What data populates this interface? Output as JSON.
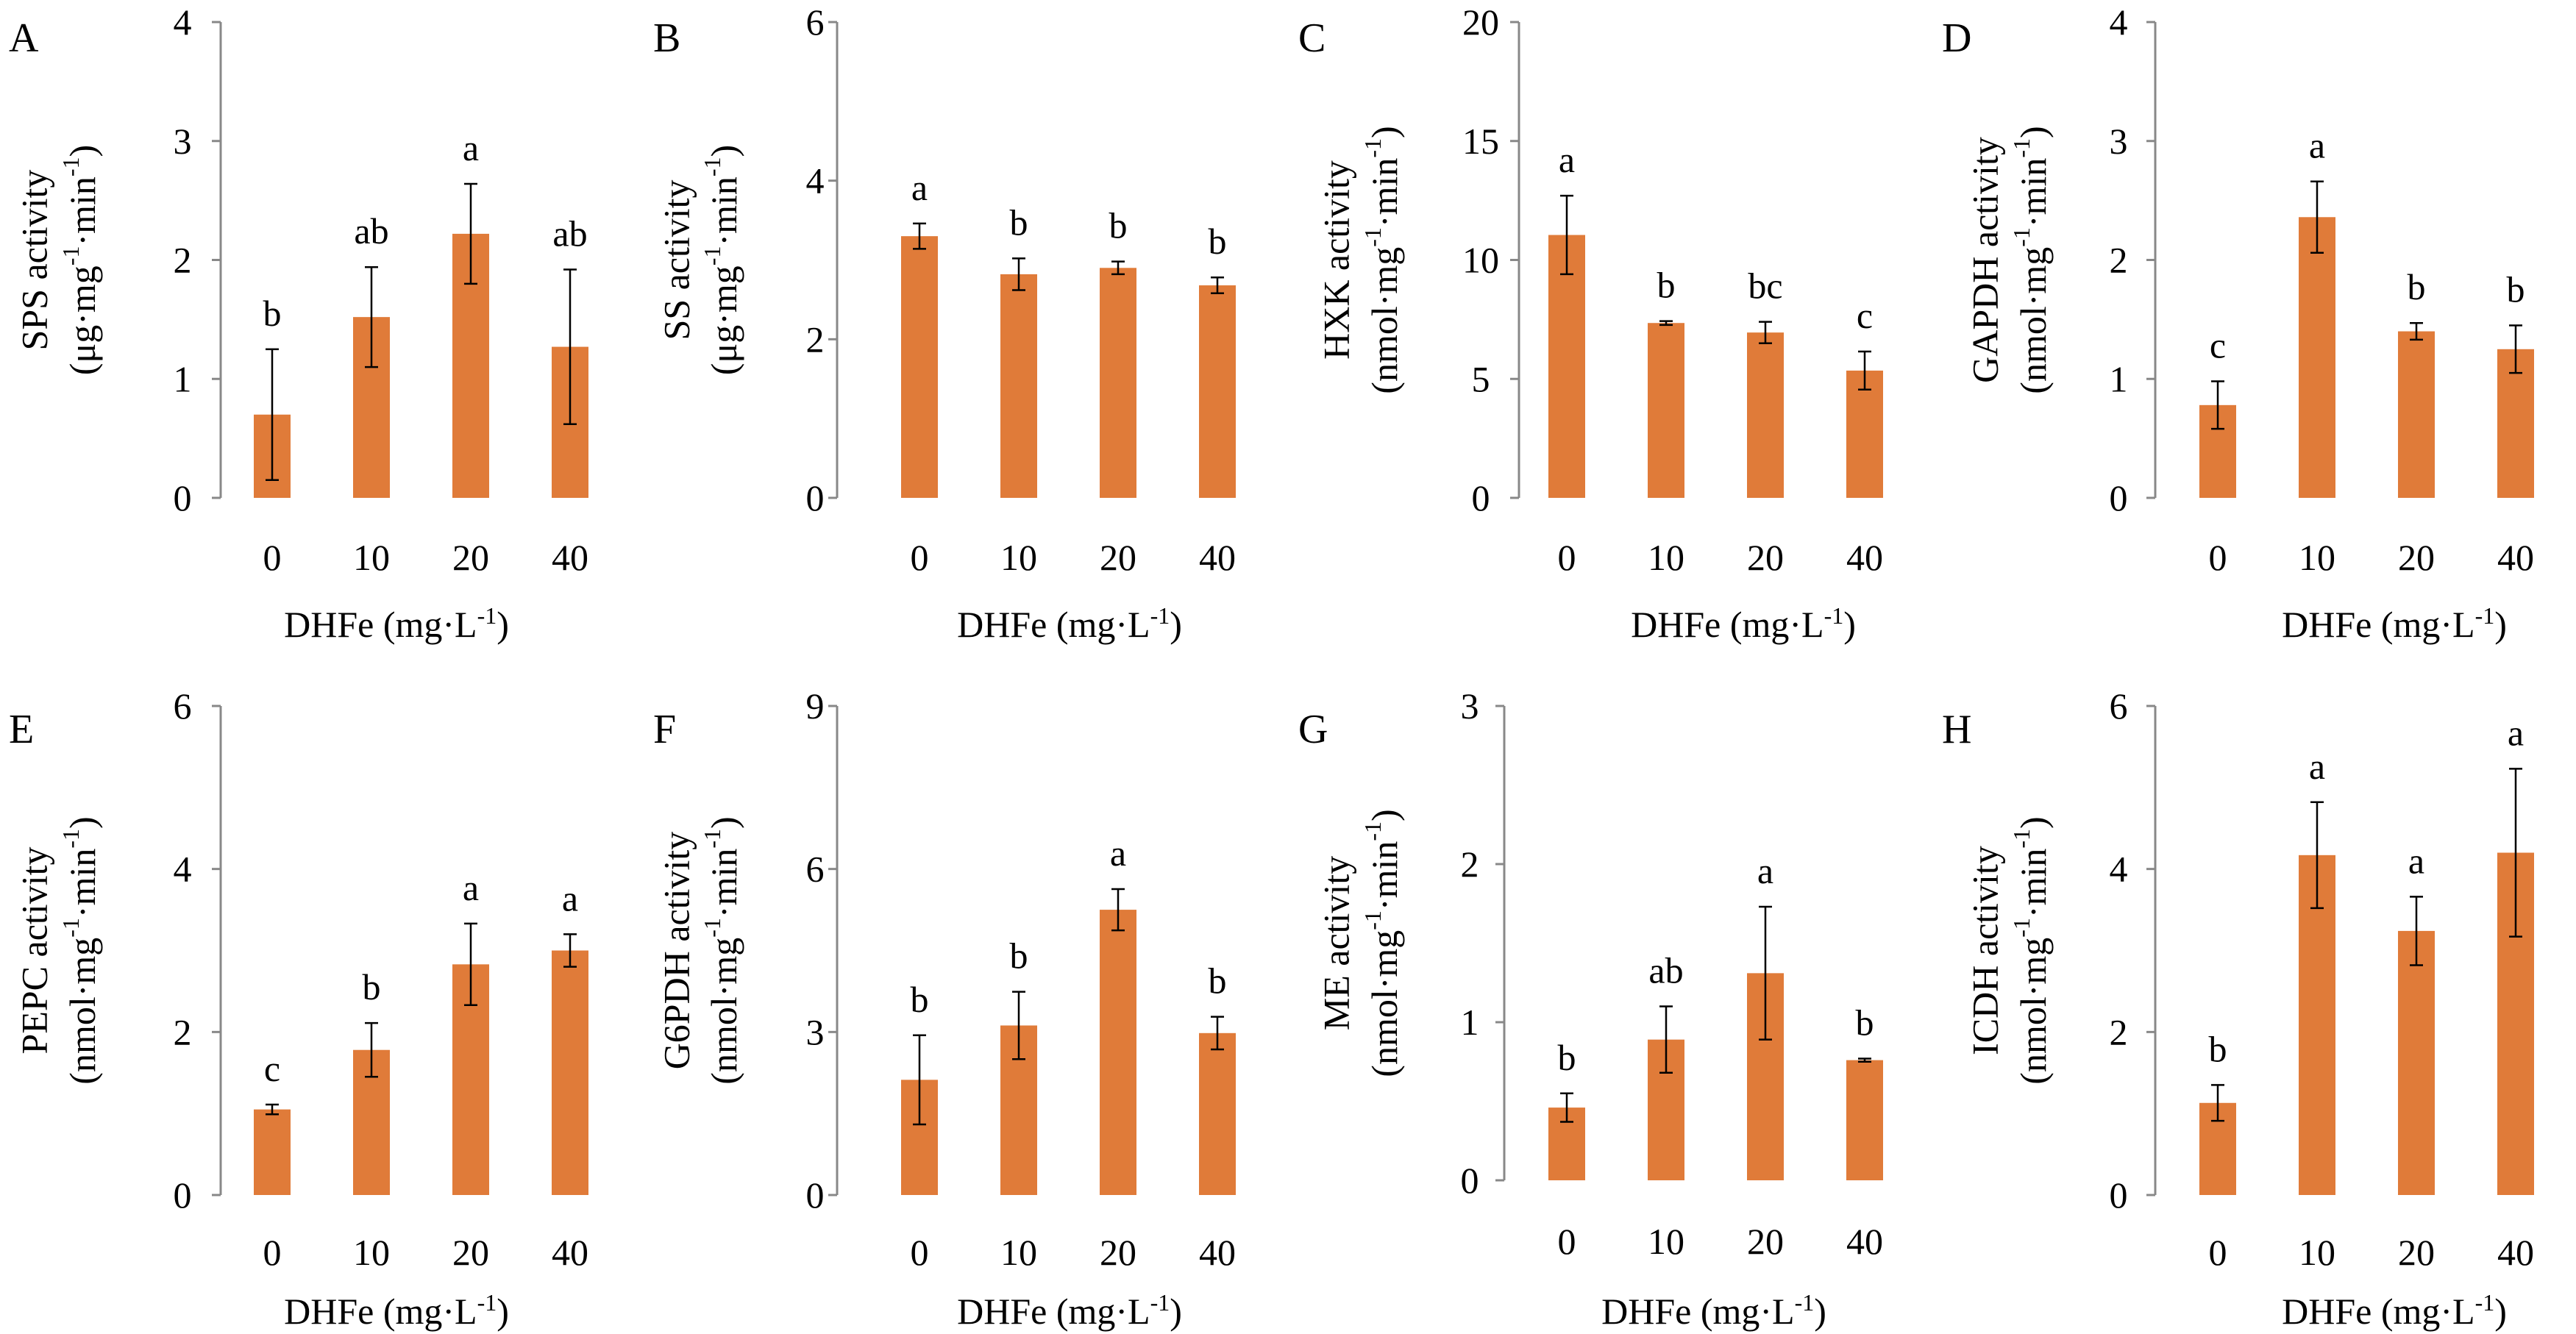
{
  "figure": {
    "bar_color": "#E07B39",
    "error_bar_color": "#000000",
    "axis_color": "#888888"
  },
  "chart_data": [
    {
      "panel": "A",
      "type": "bar",
      "categories": [
        "0",
        "10",
        "20",
        "40"
      ],
      "values": [
        0.7,
        1.52,
        2.22,
        1.27
      ],
      "errors": [
        0.55,
        0.42,
        0.42,
        0.65
      ],
      "labels": [
        "b",
        "ab",
        "a",
        "ab"
      ],
      "ylim": [
        0,
        4
      ],
      "yticks": [
        "0",
        "1",
        "2",
        "3",
        "4"
      ],
      "ylabel_line1": "SPS activity",
      "ylabel_line2_main": "(μg·mg",
      "ylabel_line2_sup": "-1",
      "ylabel_line2_mid": "·min",
      "ylabel_line2_sup2": "-1",
      "ylabel_line2_end": ")",
      "xlabel_main": "DHFe (mg·L",
      "xlabel_sup": "-1",
      "xlabel_end": ")"
    },
    {
      "panel": "B",
      "type": "bar",
      "categories": [
        "0",
        "10",
        "20",
        "40"
      ],
      "values": [
        3.3,
        2.82,
        2.9,
        2.68
      ],
      "errors": [
        0.16,
        0.2,
        0.08,
        0.1
      ],
      "labels": [
        "a",
        "b",
        "b",
        "b"
      ],
      "ylim": [
        0,
        6
      ],
      "yticks": [
        "0",
        "2",
        "4",
        "6"
      ],
      "ylabel_line1": "SS activity",
      "ylabel_line2_main": "(μg·mg",
      "ylabel_line2_sup": "-1",
      "ylabel_line2_mid": "·min",
      "ylabel_line2_sup2": "-1",
      "ylabel_line2_end": ")",
      "xlabel_main": "DHFe (mg·L",
      "xlabel_sup": "-1",
      "xlabel_end": ")"
    },
    {
      "panel": "C",
      "type": "bar",
      "categories": [
        "0",
        "10",
        "20",
        "40"
      ],
      "values": [
        11.05,
        7.35,
        6.95,
        5.35
      ],
      "errors": [
        1.65,
        0.08,
        0.45,
        0.8
      ],
      "labels": [
        "a",
        "b",
        "bc",
        "c"
      ],
      "ylim": [
        0,
        20
      ],
      "yticks": [
        "0",
        "5",
        "10",
        "15",
        "20"
      ],
      "ylabel_line1": "HXK activity",
      "ylabel_line2_main": "(nmol·mg",
      "ylabel_line2_sup": "-1",
      "ylabel_line2_mid": "·min",
      "ylabel_line2_sup2": "-1",
      "ylabel_line2_end": ")",
      "xlabel_main": "DHFe (mg·L",
      "xlabel_sup": "-1",
      "xlabel_end": ")"
    },
    {
      "panel": "D",
      "type": "bar",
      "categories": [
        "0",
        "10",
        "20",
        "40"
      ],
      "values": [
        0.78,
        2.36,
        1.4,
        1.25
      ],
      "errors": [
        0.2,
        0.3,
        0.07,
        0.2
      ],
      "labels": [
        "c",
        "a",
        "b",
        "b"
      ],
      "ylim": [
        0,
        4
      ],
      "yticks": [
        "0",
        "1",
        "2",
        "3",
        "4"
      ],
      "ylabel_line1": "GAPDH activity",
      "ylabel_line2_main": "(nmol·mg",
      "ylabel_line2_sup": "-1",
      "ylabel_line2_mid": "·min",
      "ylabel_line2_sup2": "-1",
      "ylabel_line2_end": ")",
      "xlabel_main": "DHFe (mg·L",
      "xlabel_sup": "-1",
      "xlabel_end": ")"
    },
    {
      "panel": "E",
      "type": "bar",
      "categories": [
        "0",
        "10",
        "20",
        "40"
      ],
      "values": [
        1.05,
        1.78,
        2.83,
        3.0
      ],
      "errors": [
        0.06,
        0.33,
        0.5,
        0.2
      ],
      "labels": [
        "c",
        "b",
        "a",
        "a"
      ],
      "ylim": [
        0,
        6
      ],
      "yticks": [
        "0",
        "2",
        "4",
        "6"
      ],
      "ylabel_line1": "PEPC activity",
      "ylabel_line2_main": "(nmol·mg",
      "ylabel_line2_sup": "-1",
      "ylabel_line2_mid": "·min",
      "ylabel_line2_sup2": "-1",
      "ylabel_line2_end": ")",
      "xlabel_main": "DHFe (mg·L",
      "xlabel_sup": "-1",
      "xlabel_end": ")"
    },
    {
      "panel": "F",
      "type": "bar",
      "categories": [
        "0",
        "10",
        "20",
        "40"
      ],
      "values": [
        2.12,
        3.12,
        5.25,
        2.98
      ],
      "errors": [
        0.82,
        0.62,
        0.38,
        0.3
      ],
      "labels": [
        "b",
        "b",
        "a",
        "b"
      ],
      "ylim": [
        0,
        9
      ],
      "yticks": [
        "0",
        "3",
        "6",
        "9"
      ],
      "ylabel_line1": "G6PDH activity",
      "ylabel_line2_main": "(nmol·mg",
      "ylabel_line2_sup": "-1",
      "ylabel_line2_mid": "·min",
      "ylabel_line2_sup2": "-1",
      "ylabel_line2_end": ")",
      "xlabel_main": "DHFe (mg·L",
      "xlabel_sup": "-1",
      "xlabel_end": ")"
    },
    {
      "panel": "G",
      "type": "bar",
      "categories": [
        "0",
        "10",
        "20",
        "40"
      ],
      "values": [
        0.46,
        0.89,
        1.31,
        0.76
      ],
      "errors": [
        0.09,
        0.21,
        0.42,
        0.01
      ],
      "labels": [
        "b",
        "ab",
        "a",
        "b"
      ],
      "ylim": [
        0,
        3
      ],
      "yticks": [
        "0",
        "1",
        "2",
        "3"
      ],
      "ylabel_line1": "ME activity",
      "ylabel_line2_main": "(nmol·mg",
      "ylabel_line2_sup": "-1",
      "ylabel_line2_mid": "·min",
      "ylabel_line2_sup2": "-1",
      "ylabel_line2_end": ")",
      "xlabel_main": "DHFe (mg·L",
      "xlabel_sup": "-1",
      "xlabel_end": ")"
    },
    {
      "panel": "H",
      "type": "bar",
      "categories": [
        "0",
        "10",
        "20",
        "40"
      ],
      "values": [
        1.13,
        4.17,
        3.24,
        4.2
      ],
      "errors": [
        0.22,
        0.65,
        0.42,
        1.03
      ],
      "labels": [
        "b",
        "a",
        "a",
        "a"
      ],
      "ylim": [
        0,
        6
      ],
      "yticks": [
        "0",
        "2",
        "4",
        "6"
      ],
      "ylabel_line1": "ICDH activity",
      "ylabel_line2_main": "(nmol·mg",
      "ylabel_line2_sup": "-1",
      "ylabel_line2_mid": "·min",
      "ylabel_line2_sup2": "-1",
      "ylabel_line2_end": ")",
      "xlabel_main": "DHFe (mg·L",
      "xlabel_sup": "-1",
      "xlabel_end": ")"
    }
  ]
}
